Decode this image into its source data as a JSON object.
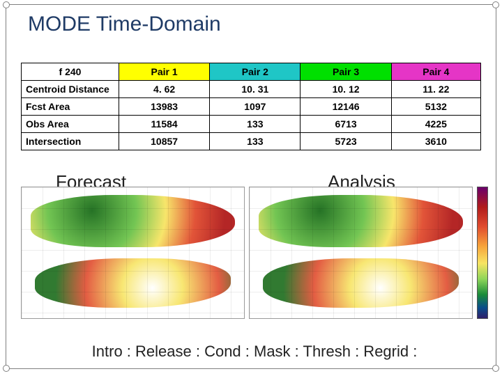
{
  "title": "MODE Time-Domain",
  "table": {
    "corner_label": "f 240",
    "headers": [
      {
        "label": "Pair 1",
        "bg": "#ffff00"
      },
      {
        "label": "Pair 2",
        "bg": "#1fc6c6"
      },
      {
        "label": "Pair 3",
        "bg": "#00e000"
      },
      {
        "label": "Pair 4",
        "bg": "#e535c6"
      }
    ],
    "rows": [
      {
        "label": "Centroid Distance",
        "cells": [
          "4. 62",
          "10. 31",
          "10. 12",
          "11. 22"
        ]
      },
      {
        "label": "Fcst Area",
        "cells": [
          "13983",
          "1097",
          "12146",
          "5132"
        ]
      },
      {
        "label": "Obs Area",
        "cells": [
          "11584",
          "133",
          "6713",
          "4225"
        ]
      },
      {
        "label": "Intersection",
        "cells": [
          "10857",
          "133",
          "5723",
          "3610"
        ]
      }
    ],
    "cell_fontsize": 14,
    "border_color": "#000000"
  },
  "overlays": {
    "forecast": "Forecast",
    "analysis": "Analysis"
  },
  "maps": {
    "panels": [
      "forecast",
      "analysis"
    ],
    "colorbar_stops": [
      "#6a006a",
      "#b01b1b",
      "#e04b2e",
      "#f7a43b",
      "#f7e463",
      "#8fd65a",
      "#1a8b3a",
      "#0a4c8b",
      "#30206a"
    ]
  },
  "breadcrumb": "Intro : Release : Cond : Mask :  Thresh : Regrid :",
  "colors": {
    "title": "#1f3b66",
    "background": "#ffffff",
    "frame_border": "#808080"
  },
  "fonts": {
    "title_pt": 30,
    "table_pt": 14,
    "overlay_pt": 26,
    "breadcrumb_pt": 22
  }
}
